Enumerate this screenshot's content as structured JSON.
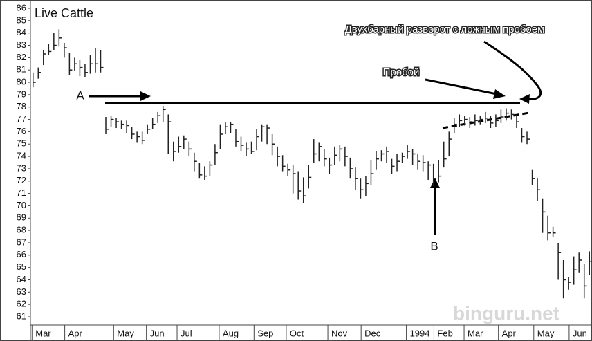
{
  "chart_data": {
    "type": "hlc",
    "title": "Live Cattle",
    "annotations": {
      "a": "A",
      "b": "B",
      "breakout": "Пробой",
      "reversal": "Двухбарный разворот с ложным пробоем"
    },
    "color": "#222222",
    "xlim": [
      0,
      108
    ],
    "ylim": [
      61,
      86
    ],
    "yticks": [
      61,
      62,
      63,
      64,
      65,
      66,
      67,
      68,
      69,
      70,
      71,
      72,
      73,
      74,
      75,
      76,
      77,
      78,
      79,
      80,
      81,
      82,
      83,
      84,
      85,
      86
    ],
    "xticks": [
      {
        "value": 0.3,
        "label": "Mar"
      },
      {
        "value": 6.6,
        "label": "Apr"
      },
      {
        "value": 16,
        "label": "May"
      },
      {
        "value": 22.3,
        "label": "Jun"
      },
      {
        "value": 28.2,
        "label": "Jul"
      },
      {
        "value": 36.3,
        "label": "Aug"
      },
      {
        "value": 43,
        "label": "Sep"
      },
      {
        "value": 49.2,
        "label": "Oct"
      },
      {
        "value": 57.2,
        "label": "Nov"
      },
      {
        "value": 63.6,
        "label": "Dec"
      },
      {
        "value": 72.3,
        "label": "1994"
      },
      {
        "value": 77.6,
        "label": "Feb"
      },
      {
        "value": 83.4,
        "label": "Mar"
      },
      {
        "value": 90,
        "label": "Apr"
      },
      {
        "value": 96.8,
        "label": "May"
      },
      {
        "value": 103.6,
        "label": "Jun"
      }
    ],
    "high": [
      80.8,
      81.2,
      82.6,
      83.1,
      84,
      84.3,
      83.2,
      82.4,
      82,
      81.8,
      81.5,
      82.2,
      82.8,
      82.6,
      77.2,
      77.3,
      77.1,
      76.9,
      76.9,
      76.4,
      76,
      76,
      76.6,
      77.1,
      77.6,
      78.1,
      77.4,
      75.2,
      75.6,
      75.7,
      75.2,
      74.3,
      73.5,
      73.2,
      73.6,
      75,
      76.6,
      76.8,
      76.8,
      76.2,
      75.6,
      75.1,
      75.2,
      76.2,
      76.6,
      76.6,
      75.8,
      74.8,
      74.1,
      73.4,
      73.3,
      72.8,
      72.3,
      73.3,
      75.4,
      75.1,
      74.6,
      73.9,
      74.8,
      74.9,
      74.8,
      73.9,
      73.1,
      72.2,
      72.4,
      73.7,
      74.4,
      74.5,
      74.8,
      73.8,
      74.2,
      74.3,
      74.9,
      74.6,
      74.2,
      74.1,
      73.6,
      73.4,
      73.7,
      75.2,
      76,
      77.1,
      77.4,
      77.3,
      77.2,
      77.4,
      77.3,
      77.6,
      77.3,
      77.4,
      77.8,
      77.9,
      77.8,
      77.4,
      76.3,
      76,
      72.9,
      72.2,
      70.6,
      69.2,
      68.3,
      67,
      65.6,
      64.2,
      65.9,
      66.2,
      65.3,
      66.3
    ],
    "low": [
      79.6,
      80.3,
      81.4,
      82.2,
      82.6,
      82.9,
      82,
      80.6,
      80.9,
      80.5,
      80.4,
      80.7,
      80.8,
      80.8,
      75.8,
      76.4,
      76.3,
      76.2,
      75.9,
      75.4,
      75.1,
      75,
      75.8,
      76.2,
      76.7,
      76.8,
      74.2,
      73.6,
      74.3,
      74.6,
      74,
      72.8,
      72.2,
      72.1,
      72.4,
      73.3,
      74.6,
      75.8,
      75.9,
      74.8,
      74.4,
      74,
      74.2,
      74.5,
      75.2,
      75,
      74.1,
      73.2,
      72.8,
      72.4,
      71,
      70.5,
      70.2,
      71.4,
      73.5,
      73.6,
      73.2,
      72.6,
      73.3,
      73.6,
      73.2,
      72.2,
      71.3,
      70.6,
      70.8,
      71.7,
      72.9,
      73.6,
      73.5,
      72.6,
      72.8,
      73.5,
      73.8,
      73.3,
      72.9,
      72.8,
      72.1,
      71.6,
      71.9,
      73.1,
      74,
      75.9,
      76.4,
      76.5,
      76.3,
      76.5,
      76.6,
      76.7,
      76.3,
      76.4,
      76.7,
      76.9,
      77,
      76.3,
      75.1,
      75,
      71.7,
      70.4,
      67.8,
      67.2,
      67.5,
      64,
      62.5,
      63.2,
      63.6,
      64.6,
      62.5,
      64.4
    ],
    "close": [
      80,
      80.8,
      82.3,
      82.5,
      83,
      83.6,
      82.8,
      81,
      81.5,
      81.2,
      80.8,
      81.5,
      81.5,
      81.2,
      76.2,
      77,
      76.8,
      76.6,
      76.5,
      75.8,
      75.6,
      75.3,
      76.2,
      76.6,
      77.3,
      77.8,
      76.8,
      74.4,
      74.8,
      75.4,
      74.6,
      73.6,
      72.5,
      72.4,
      73.3,
      74.3,
      75.8,
      76.4,
      76.6,
      75.2,
      74.9,
      74.6,
      74.4,
      75.6,
      76.4,
      76.3,
      75,
      74,
      73.2,
      72.9,
      72.6,
      71.2,
      70.8,
      72.3,
      74.2,
      74.8,
      73.8,
      73.3,
      74.1,
      74.6,
      74,
      73,
      72.2,
      71.3,
      71.8,
      72.6,
      73.8,
      74.2,
      74.4,
      73.2,
      73.6,
      74,
      74.4,
      74.2,
      73.6,
      73.5,
      73.3,
      72.2,
      72.4,
      73.8,
      75.4,
      76.6,
      76.9,
      77,
      76.8,
      76.9,
      77,
      77.1,
      76.7,
      76.9,
      77.2,
      77.5,
      77.4,
      76.8,
      75.6,
      75.4,
      72.2,
      71.3,
      69.5,
      67.8,
      67.8,
      66.2,
      64,
      63.8,
      64.8,
      65.6,
      63.5,
      65.5
    ]
  },
  "watermark": "binguru.net"
}
